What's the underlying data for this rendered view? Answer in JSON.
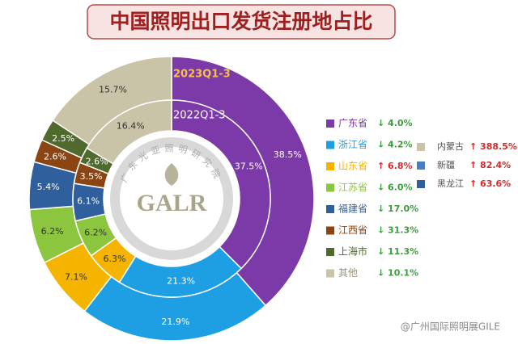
{
  "chart_data": {
    "type": "nested_donut",
    "title": "中国照明出口发货注册地占比",
    "categories": [
      "广东省",
      "浙江省",
      "山东省",
      "江苏省",
      "福建省",
      "江西省",
      "上海市",
      "其他"
    ],
    "colors": [
      "#7c3aa8",
      "#1e9fe3",
      "#f4b400",
      "#8cc63f",
      "#2f5f9c",
      "#8b4513",
      "#4f6a2c",
      "#c9c3a7"
    ],
    "series": [
      {
        "name": "2023Q1-3",
        "values": [
          38.5,
          21.9,
          7.1,
          6.2,
          5.4,
          2.6,
          2.5,
          15.7
        ],
        "value_labels": [
          "38.5%",
          "21.9%",
          "7.1%",
          "6.2%",
          "5.4%",
          "2.6%",
          "2.5%",
          "15.7%"
        ]
      },
      {
        "name": "2022Q1-3",
        "values": [
          37.5,
          21.3,
          6.3,
          6.2,
          6.1,
          3.5,
          2.6,
          16.4
        ],
        "value_labels": [
          "37.5%",
          "21.3%",
          "6.3%",
          "6.2%",
          "6.1%",
          "3.5%",
          "2.6%",
          "16.4%"
        ]
      }
    ],
    "changes": [
      "↓ 4.0%",
      "↓ 4.2%",
      "↑ 6.8%",
      "↓ 6.0%",
      "↓ 17.0%",
      "↓ 31.3%",
      "↓ 11.3%",
      "↓ 10.1%"
    ],
    "other_regions": [
      {
        "name": "内蒙古",
        "color": "#c9c3a7",
        "change": "↑ 388.5%"
      },
      {
        "name": "新疆",
        "color": "#4a7ec4",
        "change": "↑ 82.4%"
      },
      {
        "name": "黑龙江",
        "color": "#2f5f9c",
        "change": "↑ 63.6%"
      }
    ],
    "logo": {
      "text": "GALR",
      "ring_text": "广东光亚照明研究院"
    },
    "watermark": "@广州国际照明展GILE"
  }
}
